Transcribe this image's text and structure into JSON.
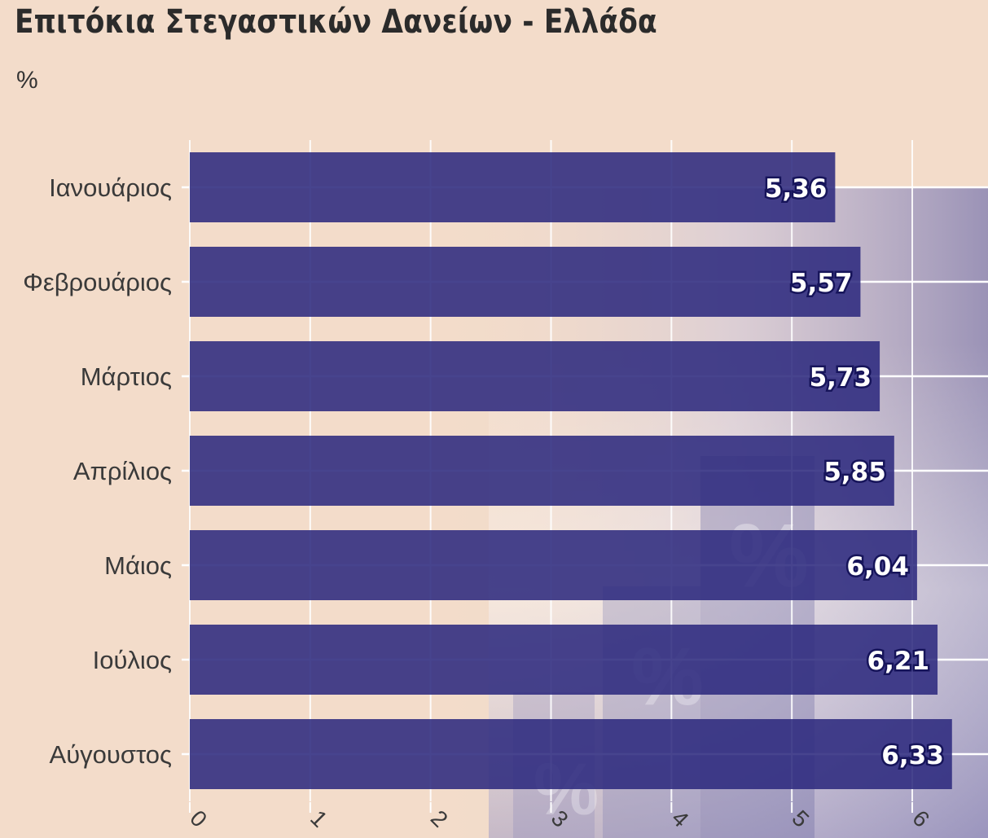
{
  "header": {
    "title": "Επιτόκια Στεγαστικών Δανείων - Ελλάδα",
    "unit_label": "%"
  },
  "colors": {
    "background": "#f3dcca",
    "bar": "#2e2a7e",
    "grid": "#ffffff",
    "text": "#3a3a3a"
  },
  "chart_data": {
    "type": "bar",
    "orientation": "horizontal",
    "title": "Επιτόκια Στεγαστικών Δανείων - Ελλάδα",
    "ylabel": "%",
    "categories": [
      "Ιανουάριος",
      "Φεβρουάριος",
      "Μάρτιος",
      "Απρίλιος",
      "Μάιος",
      "Ιούλιος",
      "Αύγουστος"
    ],
    "values": [
      5.36,
      5.57,
      5.73,
      5.85,
      6.04,
      6.21,
      6.33
    ],
    "value_labels": [
      "5,36",
      "5,57",
      "5,73",
      "5,85",
      "6,04",
      "6,21",
      "6,33"
    ],
    "x_ticks": [
      "0",
      "1",
      "2",
      "3",
      "4",
      "5",
      "6"
    ],
    "xlim": [
      0,
      6.6
    ],
    "grid": true
  }
}
